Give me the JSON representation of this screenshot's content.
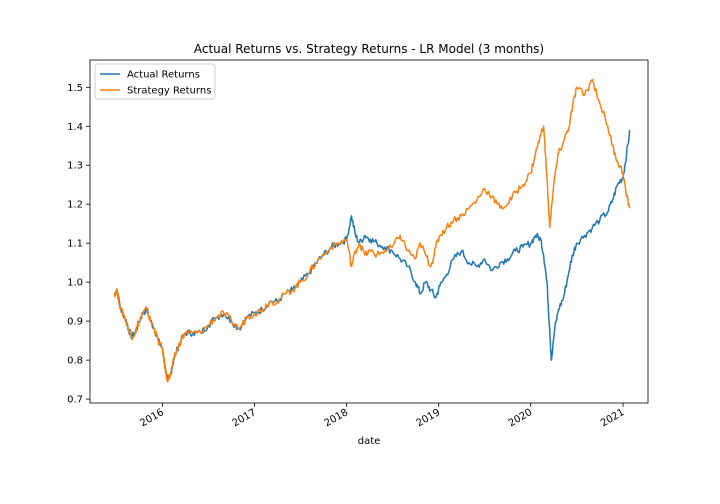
{
  "chart_data": {
    "type": "line",
    "title": "Actual Returns vs. Strategy Returns - LR Model (3 months)",
    "xlabel": "date",
    "ylabel": "",
    "xlim": [
      "2015-03-20",
      "2021-04-10"
    ],
    "ylim": [
      0.69,
      1.57
    ],
    "yticks": [
      0.7,
      0.8,
      0.9,
      1.0,
      1.1,
      1.2,
      1.3,
      1.4,
      1.5
    ],
    "ytick_labels": [
      "0.7",
      "0.8",
      "0.9",
      "1.0",
      "1.1",
      "1.2",
      "1.3",
      "1.4",
      "1.5"
    ],
    "xticks": [
      "2016-01-01",
      "2017-01-01",
      "2018-01-01",
      "2019-01-01",
      "2020-01-01",
      "2021-01-01"
    ],
    "xtick_labels": [
      "2016",
      "2017",
      "2018",
      "2019",
      "2020",
      "2021"
    ],
    "grid": false,
    "legend_position": "upper-left",
    "colors": {
      "actual": "#1f77b4",
      "strategy": "#ff7f0e"
    },
    "series": [
      {
        "name": "Actual Returns",
        "x": [
          "2015-06-25",
          "2015-07-05",
          "2015-07-20",
          "2015-08-05",
          "2015-08-20",
          "2015-09-01",
          "2015-09-15",
          "2015-10-01",
          "2015-10-15",
          "2015-11-01",
          "2015-11-15",
          "2015-12-01",
          "2015-12-15",
          "2016-01-01",
          "2016-01-10",
          "2016-01-20",
          "2016-02-01",
          "2016-02-15",
          "2016-03-01",
          "2016-03-15",
          "2016-04-01",
          "2016-05-01",
          "2016-06-01",
          "2016-07-01",
          "2016-08-01",
          "2016-09-01",
          "2016-10-01",
          "2016-11-01",
          "2016-12-01",
          "2017-01-01",
          "2017-02-01",
          "2017-03-01",
          "2017-04-01",
          "2017-05-01",
          "2017-06-01",
          "2017-07-01",
          "2017-08-01",
          "2017-09-01",
          "2017-10-01",
          "2017-11-01",
          "2017-12-01",
          "2018-01-01",
          "2018-01-20",
          "2018-02-05",
          "2018-02-20",
          "2018-03-15",
          "2018-04-05",
          "2018-05-01",
          "2018-06-01",
          "2018-07-01",
          "2018-08-01",
          "2018-09-01",
          "2018-10-01",
          "2018-10-20",
          "2018-11-10",
          "2018-12-01",
          "2018-12-20",
          "2019-01-05",
          "2019-02-01",
          "2019-03-01",
          "2019-04-01",
          "2019-05-01",
          "2019-06-01",
          "2019-07-01",
          "2019-08-01",
          "2019-09-01",
          "2019-10-01",
          "2019-11-01",
          "2019-12-01",
          "2020-01-01",
          "2020-01-20",
          "2020-02-10",
          "2020-02-21",
          "2020-03-05",
          "2020-03-16",
          "2020-03-23",
          "2020-04-05",
          "2020-04-20",
          "2020-05-10",
          "2020-06-01",
          "2020-06-15",
          "2020-07-01",
          "2020-08-01",
          "2020-09-01",
          "2020-10-01",
          "2020-11-01",
          "2020-11-20",
          "2020-12-10",
          "2021-01-01",
          "2021-01-15",
          "2021-01-29"
        ],
        "y": [
          0.97,
          0.98,
          0.93,
          0.91,
          0.88,
          0.86,
          0.87,
          0.9,
          0.92,
          0.93,
          0.9,
          0.88,
          0.85,
          0.83,
          0.79,
          0.75,
          0.76,
          0.8,
          0.83,
          0.85,
          0.87,
          0.87,
          0.87,
          0.89,
          0.91,
          0.92,
          0.9,
          0.88,
          0.91,
          0.92,
          0.93,
          0.95,
          0.95,
          0.97,
          0.98,
          1.0,
          1.02,
          1.05,
          1.07,
          1.09,
          1.1,
          1.11,
          1.17,
          1.12,
          1.1,
          1.12,
          1.11,
          1.1,
          1.09,
          1.08,
          1.06,
          1.04,
          1.0,
          0.97,
          1.0,
          0.98,
          0.96,
          0.99,
          1.02,
          1.06,
          1.08,
          1.05,
          1.04,
          1.06,
          1.03,
          1.05,
          1.06,
          1.08,
          1.09,
          1.1,
          1.12,
          1.11,
          1.07,
          1.0,
          0.88,
          0.8,
          0.88,
          0.93,
          0.96,
          1.03,
          1.07,
          1.1,
          1.12,
          1.14,
          1.16,
          1.18,
          1.21,
          1.25,
          1.27,
          1.33,
          1.39
        ]
      },
      {
        "name": "Strategy Returns",
        "x": [
          "2015-06-25",
          "2015-07-05",
          "2015-07-20",
          "2015-08-05",
          "2015-08-20",
          "2015-09-01",
          "2015-09-15",
          "2015-10-01",
          "2015-10-15",
          "2015-11-01",
          "2015-11-15",
          "2015-12-01",
          "2015-12-15",
          "2016-01-01",
          "2016-01-10",
          "2016-01-20",
          "2016-02-01",
          "2016-02-15",
          "2016-03-01",
          "2016-03-15",
          "2016-04-01",
          "2016-05-01",
          "2016-06-01",
          "2016-07-01",
          "2016-08-01",
          "2016-09-01",
          "2016-10-01",
          "2016-11-01",
          "2016-12-01",
          "2017-01-01",
          "2017-02-01",
          "2017-03-01",
          "2017-04-01",
          "2017-05-01",
          "2017-06-01",
          "2017-07-01",
          "2017-08-01",
          "2017-09-01",
          "2017-10-01",
          "2017-11-01",
          "2017-12-01",
          "2018-01-01",
          "2018-01-20",
          "2018-02-05",
          "2018-02-20",
          "2018-03-15",
          "2018-04-05",
          "2018-05-01",
          "2018-06-01",
          "2018-07-01",
          "2018-08-01",
          "2018-09-01",
          "2018-10-01",
          "2018-10-20",
          "2018-11-10",
          "2018-12-01",
          "2018-12-20",
          "2019-01-05",
          "2019-02-01",
          "2019-03-01",
          "2019-04-01",
          "2019-05-01",
          "2019-06-01",
          "2019-07-01",
          "2019-08-01",
          "2019-09-01",
          "2019-10-01",
          "2019-11-01",
          "2019-12-01",
          "2020-01-01",
          "2020-01-20",
          "2020-02-10",
          "2020-02-21",
          "2020-03-05",
          "2020-03-16",
          "2020-03-23",
          "2020-04-05",
          "2020-04-20",
          "2020-05-10",
          "2020-06-01",
          "2020-06-15",
          "2020-07-01",
          "2020-08-01",
          "2020-09-01",
          "2020-10-01",
          "2020-11-01",
          "2020-11-20",
          "2020-12-10",
          "2021-01-01",
          "2021-01-15",
          "2021-01-29"
        ],
        "y": [
          0.97,
          0.98,
          0.93,
          0.91,
          0.88,
          0.86,
          0.87,
          0.9,
          0.92,
          0.93,
          0.9,
          0.88,
          0.85,
          0.83,
          0.79,
          0.75,
          0.76,
          0.8,
          0.83,
          0.85,
          0.87,
          0.87,
          0.87,
          0.89,
          0.91,
          0.92,
          0.9,
          0.88,
          0.91,
          0.92,
          0.93,
          0.95,
          0.95,
          0.97,
          0.98,
          1.0,
          1.02,
          1.05,
          1.07,
          1.09,
          1.1,
          1.11,
          1.04,
          1.08,
          1.1,
          1.07,
          1.08,
          1.07,
          1.08,
          1.09,
          1.12,
          1.08,
          1.06,
          1.1,
          1.07,
          1.04,
          1.09,
          1.12,
          1.14,
          1.16,
          1.17,
          1.19,
          1.21,
          1.24,
          1.22,
          1.19,
          1.2,
          1.23,
          1.25,
          1.28,
          1.33,
          1.38,
          1.4,
          1.27,
          1.14,
          1.19,
          1.27,
          1.33,
          1.36,
          1.4,
          1.45,
          1.5,
          1.48,
          1.52,
          1.46,
          1.4,
          1.35,
          1.31,
          1.28,
          1.22,
          1.19
        ]
      }
    ]
  }
}
